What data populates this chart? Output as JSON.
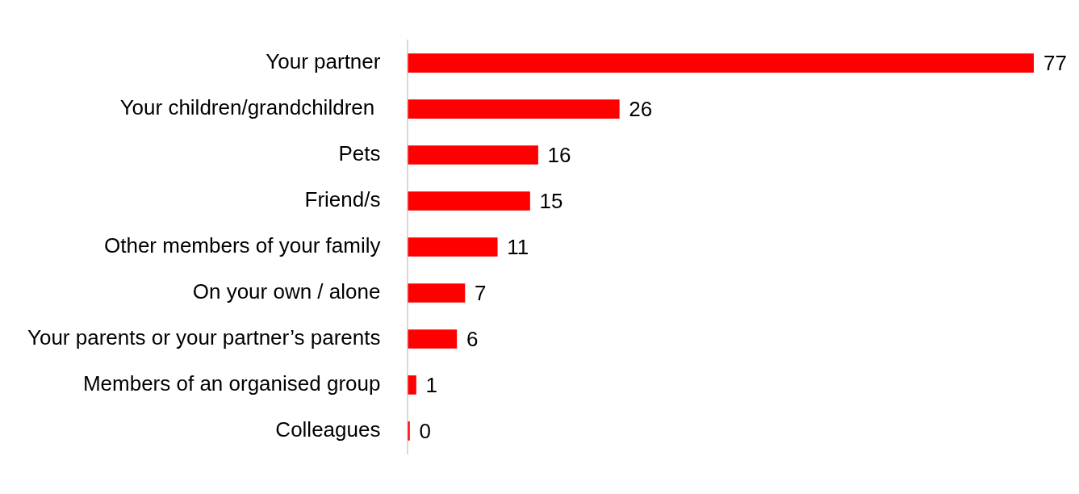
{
  "chart_data": {
    "type": "bar",
    "orientation": "horizontal",
    "categories": [
      "Your partner",
      "Your children/grandchildren ",
      "Pets",
      "Friend/s",
      "Other members of your family",
      "On your own / alone",
      "Your parents or your partner’s parents",
      "Members of an organised group",
      "Colleagues"
    ],
    "values": [
      77,
      26,
      16,
      15,
      11,
      7,
      6,
      1,
      0
    ],
    "color": "#ff0000",
    "data_labels": true
  }
}
